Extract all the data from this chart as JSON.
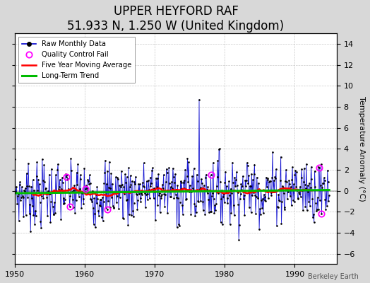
{
  "title": "UPPER HEYFORD RAF",
  "subtitle": "51.933 N, 1.250 W (United Kingdom)",
  "ylabel": "Temperature Anomaly (°C)",
  "credit": "Berkeley Earth",
  "ylim": [
    -7,
    15
  ],
  "yticks": [
    -6,
    -4,
    -2,
    0,
    2,
    4,
    6,
    8,
    10,
    12,
    14
  ],
  "xlim": [
    1950,
    1996
  ],
  "xticks": [
    1950,
    1960,
    1970,
    1980,
    1990
  ],
  "raw_color": "#0000cc",
  "ma_color": "#ff0000",
  "trend_color": "#00bb00",
  "qc_color": "#ff00ff",
  "bg_color": "#ffffff",
  "grid_color": "#bbbbbb",
  "fig_bg": "#d8d8d8",
  "title_fontsize": 12,
  "subtitle_fontsize": 9,
  "label_fontsize": 8,
  "tick_fontsize": 8,
  "credit_fontsize": 7
}
